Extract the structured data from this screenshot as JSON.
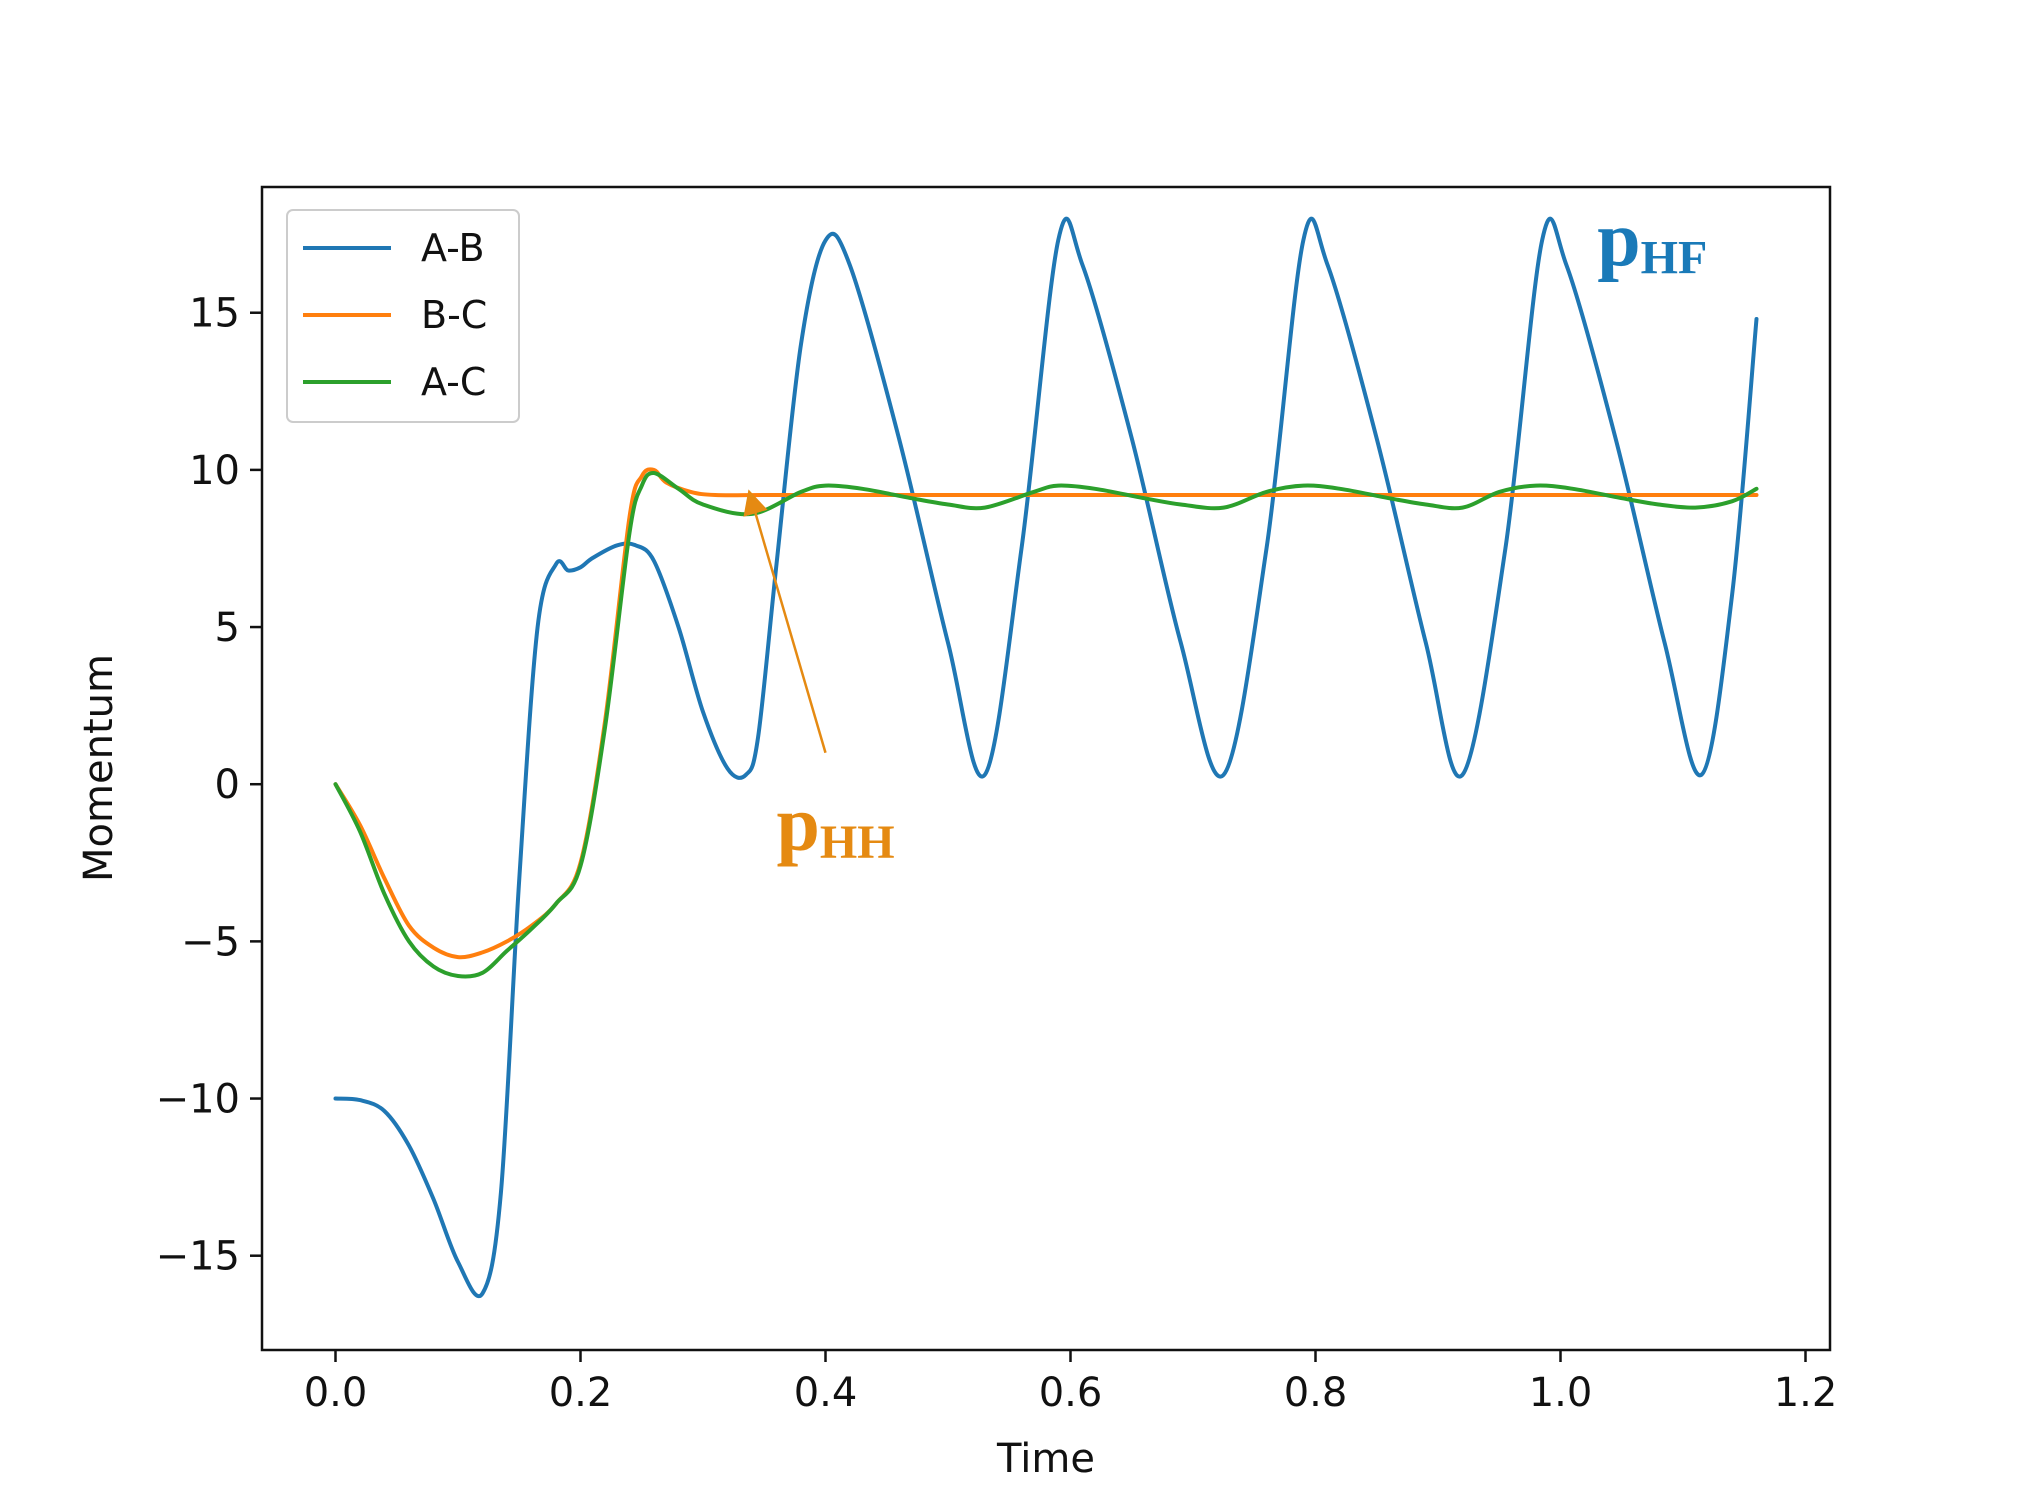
{
  "chart_data": {
    "type": "line",
    "title": "",
    "xlabel": "Time",
    "ylabel": "Momentum",
    "xlim": [
      -0.06,
      1.22
    ],
    "ylim": [
      -18,
      19
    ],
    "xticks": [
      0.0,
      0.2,
      0.4,
      0.6,
      0.8,
      1.0,
      1.2
    ],
    "xtick_labels": [
      "0.0",
      "0.2",
      "0.4",
      "0.6",
      "0.8",
      "1.0",
      "1.2"
    ],
    "yticks": [
      -15,
      -10,
      -5,
      0,
      5,
      10,
      15
    ],
    "ytick_labels": [
      "−15",
      "−10",
      "−5",
      "0",
      "5",
      "10",
      "15"
    ],
    "grid": false,
    "legend_position": "top-left",
    "series": [
      {
        "name": "A-B",
        "color": "#1f77b4",
        "x": [
          0.0,
          0.02,
          0.04,
          0.06,
          0.08,
          0.1,
          0.12,
          0.135,
          0.15,
          0.165,
          0.18,
          0.19,
          0.2,
          0.21,
          0.23,
          0.245,
          0.26,
          0.28,
          0.3,
          0.32,
          0.335,
          0.345,
          0.36,
          0.38,
          0.4,
          0.42,
          0.46,
          0.5,
          0.53,
          0.56,
          0.59,
          0.61,
          0.65,
          0.69,
          0.725,
          0.76,
          0.79,
          0.81,
          0.85,
          0.89,
          0.92,
          0.955,
          0.985,
          1.005,
          1.045,
          1.085,
          1.115,
          1.14,
          1.16
        ],
        "y": [
          -10.0,
          -10.05,
          -10.4,
          -11.5,
          -13.2,
          -15.2,
          -16.2,
          -13.0,
          -3.0,
          5.0,
          7.0,
          6.8,
          6.9,
          7.2,
          7.6,
          7.6,
          7.1,
          5.0,
          2.3,
          0.5,
          0.3,
          1.5,
          7.0,
          14.0,
          17.3,
          16.5,
          11.0,
          4.5,
          0.3,
          7.5,
          17.3,
          16.5,
          11.0,
          4.5,
          0.3,
          7.5,
          17.3,
          16.5,
          11.0,
          4.5,
          0.3,
          7.5,
          17.3,
          16.5,
          11.0,
          4.5,
          0.3,
          6.0,
          14.8
        ]
      },
      {
        "name": "B-C",
        "color": "#ff7f0e",
        "x": [
          0.0,
          0.02,
          0.04,
          0.06,
          0.08,
          0.1,
          0.12,
          0.14,
          0.16,
          0.18,
          0.2,
          0.22,
          0.24,
          0.25,
          0.26,
          0.27,
          0.29,
          0.31,
          0.35,
          0.4,
          0.5,
          0.6,
          0.7,
          0.8,
          0.9,
          1.0,
          1.1,
          1.16
        ],
        "y": [
          0.0,
          -1.3,
          -3.0,
          -4.5,
          -5.2,
          -5.5,
          -5.35,
          -5.0,
          -4.5,
          -3.8,
          -2.5,
          2.0,
          8.5,
          9.8,
          10.0,
          9.6,
          9.3,
          9.2,
          9.2,
          9.2,
          9.2,
          9.2,
          9.2,
          9.2,
          9.2,
          9.2,
          9.2,
          9.2
        ]
      },
      {
        "name": "A-C",
        "color": "#2ca02c",
        "x": [
          0.0,
          0.02,
          0.04,
          0.06,
          0.08,
          0.1,
          0.12,
          0.14,
          0.16,
          0.18,
          0.2,
          0.22,
          0.24,
          0.25,
          0.26,
          0.28,
          0.3,
          0.34,
          0.38,
          0.4,
          0.43,
          0.47,
          0.5,
          0.53,
          0.57,
          0.59,
          0.62,
          0.66,
          0.69,
          0.725,
          0.76,
          0.79,
          0.82,
          0.86,
          0.89,
          0.92,
          0.95,
          0.98,
          1.01,
          1.05,
          1.08,
          1.11,
          1.14,
          1.16
        ],
        "y": [
          0.0,
          -1.5,
          -3.5,
          -5.0,
          -5.8,
          -6.1,
          -6.0,
          -5.3,
          -4.6,
          -3.8,
          -2.6,
          1.8,
          8.0,
          9.5,
          9.9,
          9.4,
          8.9,
          8.6,
          9.3,
          9.5,
          9.4,
          9.1,
          8.9,
          8.8,
          9.3,
          9.5,
          9.4,
          9.1,
          8.9,
          8.8,
          9.3,
          9.5,
          9.4,
          9.1,
          8.9,
          8.8,
          9.3,
          9.5,
          9.4,
          9.1,
          8.9,
          8.8,
          9.0,
          9.4
        ]
      }
    ],
    "annotations": [
      {
        "text": "p",
        "sub": "HF",
        "color": "#1a7ab8",
        "anchor_x": 1.03,
        "anchor_y": 16.5
      },
      {
        "text": "p",
        "sub": "HH",
        "color": "#e58a12",
        "anchor_x": 0.36,
        "anchor_y": -2.1,
        "arrow_from_x": 0.4,
        "arrow_from_y": 1.0,
        "arrow_to_x": 0.34,
        "arrow_to_y": 9.0
      }
    ]
  }
}
